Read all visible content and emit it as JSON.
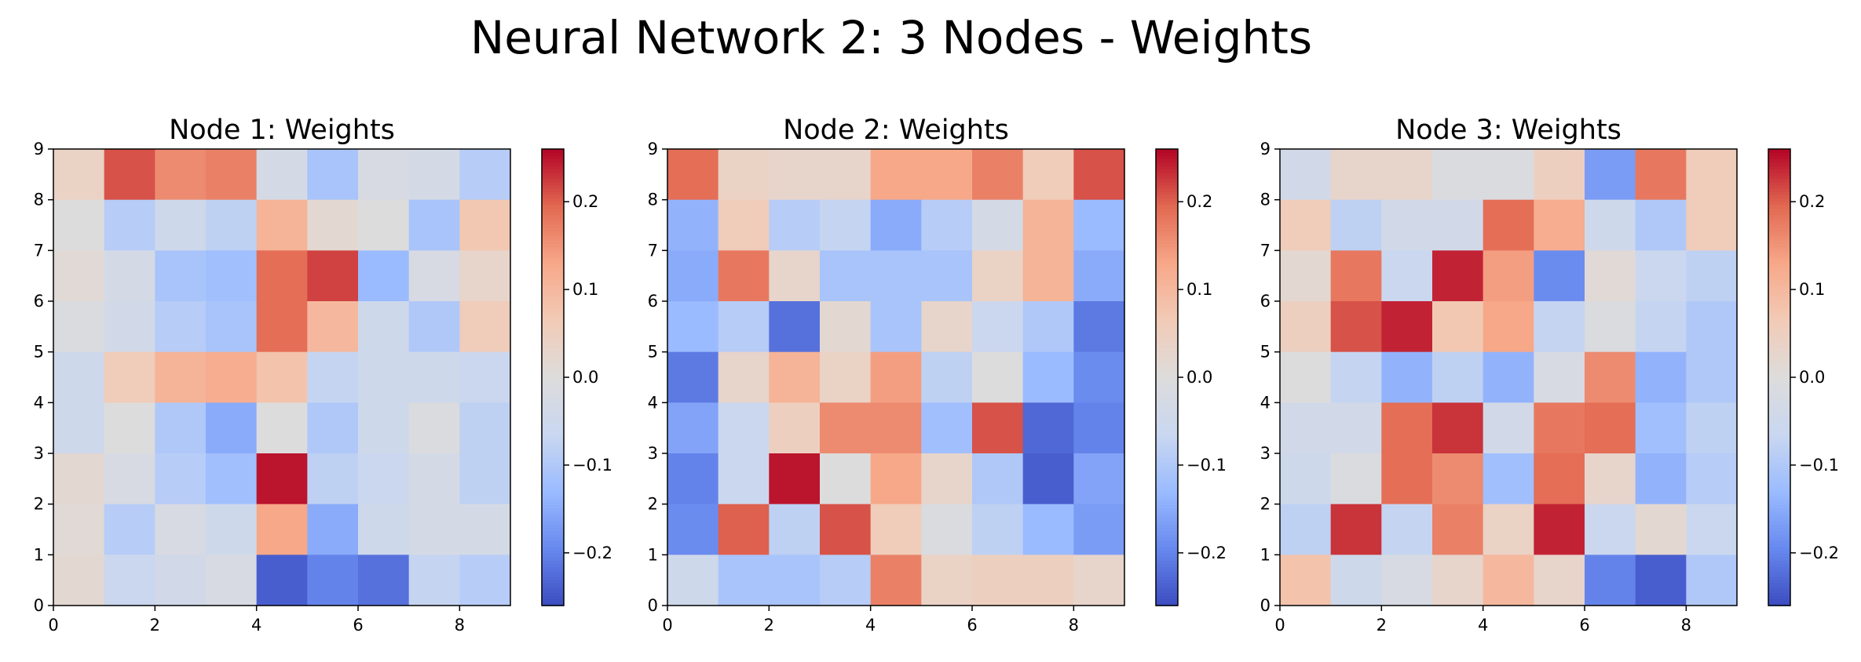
{
  "figure": {
    "title": "Neural Network 2: 3 Nodes - Weights"
  },
  "colormap": {
    "name": "coolwarm",
    "stops": [
      "#3b4cc0",
      "#6788ee",
      "#9abbff",
      "#c9d7f0",
      "#dddcdc",
      "#f2cbb7",
      "#f7a889",
      "#e26952",
      "#b40426"
    ]
  },
  "chart_data": [
    {
      "type": "heatmap",
      "title": "Node 1: Weights",
      "x_ticks": [
        "0",
        "2",
        "4",
        "6",
        "8"
      ],
      "y_ticks": [
        "0",
        "1",
        "2",
        "3",
        "4",
        "5",
        "6",
        "7",
        "8",
        "9"
      ],
      "xlim": [
        0,
        9
      ],
      "ylim": [
        0,
        9
      ],
      "colorbar": {
        "vmin": -0.26,
        "vmax": 0.26,
        "ticks": [
          0.2,
          0.1,
          0.0,
          -0.1,
          -0.2
        ],
        "tick_labels": [
          "0.2",
          "0.1",
          "0.0",
          "−0.1",
          "−0.2"
        ]
      },
      "rows_top_to_bottom": [
        [
          0.04,
          0.21,
          0.16,
          0.17,
          -0.03,
          -0.11,
          -0.02,
          -0.03,
          -0.09
        ],
        [
          0.0,
          -0.09,
          -0.05,
          -0.08,
          0.11,
          0.02,
          0.0,
          -0.11,
          0.07
        ],
        [
          0.01,
          -0.03,
          -0.11,
          -0.12,
          0.19,
          0.22,
          -0.13,
          -0.02,
          0.03
        ],
        [
          -0.01,
          -0.04,
          -0.09,
          -0.11,
          0.19,
          0.1,
          -0.05,
          -0.1,
          0.06
        ],
        [
          -0.05,
          0.06,
          0.11,
          0.12,
          0.08,
          -0.07,
          -0.05,
          -0.05,
          -0.06
        ],
        [
          -0.05,
          0.0,
          -0.1,
          -0.15,
          0.0,
          -0.1,
          -0.05,
          -0.01,
          -0.08
        ],
        [
          0.02,
          -0.02,
          -0.09,
          -0.12,
          0.25,
          -0.08,
          -0.06,
          -0.03,
          -0.08
        ],
        [
          0.01,
          -0.09,
          -0.02,
          -0.05,
          0.13,
          -0.15,
          -0.05,
          -0.03,
          -0.03
        ],
        [
          0.02,
          -0.06,
          -0.04,
          -0.02,
          -0.24,
          -0.2,
          -0.22,
          -0.07,
          -0.09
        ]
      ]
    },
    {
      "type": "heatmap",
      "title": "Node 2: Weights",
      "x_ticks": [
        "0",
        "2",
        "4",
        "6",
        "8"
      ],
      "y_ticks": [
        "0",
        "1",
        "2",
        "3",
        "4",
        "5",
        "6",
        "7",
        "8",
        "9"
      ],
      "xlim": [
        0,
        9
      ],
      "ylim": [
        0,
        9
      ],
      "colorbar": {
        "vmin": -0.26,
        "vmax": 0.26,
        "ticks": [
          0.2,
          0.1,
          0.0,
          -0.1,
          -0.2
        ],
        "tick_labels": [
          "0.2",
          "0.1",
          "0.0",
          "−0.1",
          "−0.2"
        ]
      },
      "rows_top_to_bottom": [
        [
          0.19,
          0.04,
          0.03,
          0.03,
          0.13,
          0.13,
          0.17,
          0.06,
          0.21
        ],
        [
          -0.14,
          0.06,
          -0.09,
          -0.07,
          -0.15,
          -0.09,
          -0.03,
          0.11,
          -0.13
        ],
        [
          -0.15,
          0.18,
          0.03,
          -0.11,
          -0.11,
          -0.11,
          0.04,
          0.11,
          -0.15
        ],
        [
          -0.13,
          -0.09,
          -0.22,
          0.02,
          -0.11,
          0.03,
          -0.06,
          -0.1,
          -0.21
        ],
        [
          -0.21,
          0.03,
          0.11,
          0.04,
          0.14,
          -0.08,
          0.0,
          -0.13,
          -0.19
        ],
        [
          -0.16,
          -0.06,
          0.05,
          0.16,
          0.16,
          -0.12,
          0.21,
          -0.23,
          -0.2
        ],
        [
          -0.2,
          -0.06,
          0.25,
          0.0,
          0.13,
          0.03,
          -0.1,
          -0.24,
          -0.16
        ],
        [
          -0.19,
          0.2,
          -0.08,
          0.21,
          0.06,
          -0.01,
          -0.08,
          -0.13,
          -0.17
        ],
        [
          -0.05,
          -0.11,
          -0.11,
          -0.09,
          0.17,
          0.04,
          0.05,
          0.05,
          0.03
        ]
      ]
    },
    {
      "type": "heatmap",
      "title": "Node 3: Weights",
      "x_ticks": [
        "0",
        "2",
        "4",
        "6",
        "8"
      ],
      "y_ticks": [
        "0",
        "1",
        "2",
        "3",
        "4",
        "5",
        "6",
        "7",
        "8",
        "9"
      ],
      "xlim": [
        0,
        9
      ],
      "ylim": [
        0,
        9
      ],
      "colorbar": {
        "vmin": -0.26,
        "vmax": 0.26,
        "ticks": [
          0.2,
          0.1,
          0.0,
          -0.1,
          -0.2
        ],
        "tick_labels": [
          "0.2",
          "0.1",
          "0.0",
          "−0.1",
          "−0.2"
        ]
      },
      "rows_top_to_bottom": [
        [
          -0.04,
          0.03,
          0.03,
          -0.01,
          -0.01,
          0.05,
          -0.17,
          0.18,
          0.06
        ],
        [
          0.06,
          -0.08,
          -0.04,
          -0.04,
          0.19,
          0.12,
          -0.05,
          -0.1,
          0.06
        ],
        [
          0.02,
          0.18,
          -0.06,
          0.24,
          0.14,
          -0.19,
          0.01,
          -0.06,
          -0.08
        ],
        [
          0.05,
          0.21,
          0.24,
          0.07,
          0.13,
          -0.07,
          -0.01,
          -0.07,
          -0.1
        ],
        [
          0.0,
          -0.07,
          -0.14,
          -0.08,
          -0.14,
          -0.02,
          0.16,
          -0.14,
          -0.1
        ],
        [
          -0.04,
          -0.04,
          0.19,
          0.23,
          -0.04,
          0.18,
          0.19,
          -0.12,
          -0.08
        ],
        [
          -0.05,
          -0.01,
          0.19,
          0.16,
          -0.12,
          0.19,
          0.03,
          -0.14,
          -0.09
        ],
        [
          -0.08,
          0.23,
          -0.07,
          0.17,
          0.04,
          0.24,
          -0.06,
          0.02,
          -0.06
        ],
        [
          0.08,
          -0.05,
          -0.02,
          0.03,
          0.1,
          0.03,
          -0.2,
          -0.24,
          -0.1
        ]
      ]
    }
  ]
}
